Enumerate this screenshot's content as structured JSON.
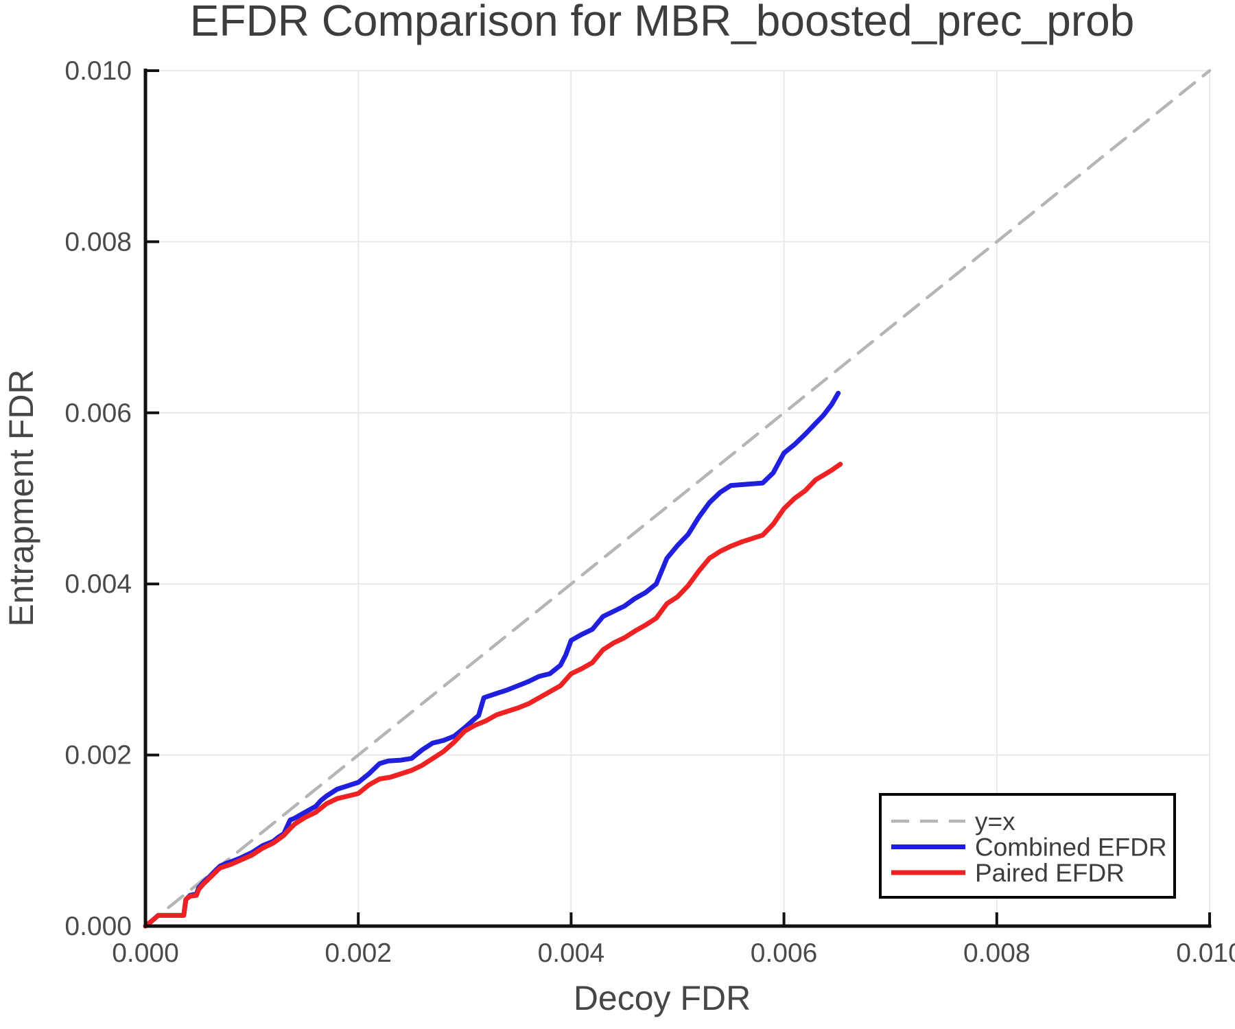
{
  "page": {
    "background": "#ffffff"
  },
  "chart_data": {
    "type": "line",
    "title": "EFDR Comparison for MBR_boosted_prec_prob",
    "xlabel": "Decoy FDR",
    "ylabel": "Entrapment FDR",
    "xlim": [
      0.0,
      0.01
    ],
    "ylim": [
      0.0,
      0.01
    ],
    "x_ticks": [
      0.0,
      0.002,
      0.004,
      0.006,
      0.008,
      0.01
    ],
    "y_ticks": [
      0.0,
      0.002,
      0.004,
      0.006,
      0.008,
      0.01
    ],
    "x_tick_labels": [
      "0.000",
      "0.002",
      "0.004",
      "0.006",
      "0.008",
      "0.010"
    ],
    "y_tick_labels": [
      "0.000",
      "0.002",
      "0.004",
      "0.006",
      "0.008",
      "0.010"
    ],
    "grid": true,
    "legend_position": "lower right",
    "colors": {
      "identity_line": "#b5b5b5",
      "combined": "#1f1fdd",
      "paired": "#ee2222",
      "gridline": "#e9e9e9",
      "spine": "#121212",
      "title_text": "#3d3d3d",
      "tick_text": "#4a4a4a",
      "label_text": "#464646",
      "legend_border": "#000000",
      "legend_fill": "#ffffff"
    },
    "series": [
      {
        "name": "y=x",
        "style": "dashed",
        "color": "#b5b5b5",
        "points": [
          [
            0.0,
            0.0
          ],
          [
            0.01,
            0.01
          ]
        ]
      },
      {
        "name": "Combined EFDR",
        "style": "solid",
        "color": "#1f1fdd",
        "points": [
          [
            0.0,
            0.0
          ],
          [
            6e-05,
            6e-05
          ],
          [
            0.00012,
            0.000125
          ],
          [
            0.00036,
            0.000125
          ],
          [
            0.00038,
            0.00031
          ],
          [
            0.00042,
            0.00036
          ],
          [
            0.00048,
            0.000375
          ],
          [
            0.0005,
            0.00045
          ],
          [
            0.00055,
            0.00052
          ],
          [
            0.0006,
            0.000575
          ],
          [
            0.00065,
            0.00064
          ],
          [
            0.0007,
            0.0007
          ],
          [
            0.00075,
            0.00073
          ],
          [
            0.0008,
            0.00075
          ],
          [
            0.0009,
            0.0008
          ],
          [
            0.001,
            0.00086
          ],
          [
            0.0011,
            0.00094
          ],
          [
            0.0012,
            0.00099
          ],
          [
            0.00125,
            0.00104
          ],
          [
            0.0013,
            0.00108
          ],
          [
            0.00136,
            0.00124
          ],
          [
            0.0014,
            0.00126
          ],
          [
            0.0015,
            0.00133
          ],
          [
            0.0016,
            0.0014
          ],
          [
            0.00165,
            0.00147
          ],
          [
            0.0017,
            0.00152
          ],
          [
            0.0018,
            0.0016
          ],
          [
            0.0019,
            0.00164
          ],
          [
            0.002,
            0.00168
          ],
          [
            0.0021,
            0.00178
          ],
          [
            0.0022,
            0.0019
          ],
          [
            0.00228,
            0.00193
          ],
          [
            0.0024,
            0.00194
          ],
          [
            0.0025,
            0.00196
          ],
          [
            0.0026,
            0.00206
          ],
          [
            0.0027,
            0.00214
          ],
          [
            0.0028,
            0.00217
          ],
          [
            0.0029,
            0.00222
          ],
          [
            0.003,
            0.00232
          ],
          [
            0.0031,
            0.00243
          ],
          [
            0.00313,
            0.00246
          ],
          [
            0.00318,
            0.00267
          ],
          [
            0.0033,
            0.00272
          ],
          [
            0.0034,
            0.00276
          ],
          [
            0.0035,
            0.00281
          ],
          [
            0.0036,
            0.00286
          ],
          [
            0.0037,
            0.00292
          ],
          [
            0.0038,
            0.00295
          ],
          [
            0.0039,
            0.00305
          ],
          [
            0.00395,
            0.00317
          ],
          [
            0.004,
            0.00334
          ],
          [
            0.0041,
            0.00341
          ],
          [
            0.0042,
            0.00347
          ],
          [
            0.0043,
            0.00362
          ],
          [
            0.0044,
            0.00368
          ],
          [
            0.0045,
            0.00374
          ],
          [
            0.0046,
            0.00383
          ],
          [
            0.0047,
            0.0039
          ],
          [
            0.0048,
            0.004
          ],
          [
            0.0049,
            0.0043
          ],
          [
            0.005,
            0.00445
          ],
          [
            0.0051,
            0.00458
          ],
          [
            0.0052,
            0.00478
          ],
          [
            0.0053,
            0.00495
          ],
          [
            0.0054,
            0.00507
          ],
          [
            0.0055,
            0.00515
          ],
          [
            0.0056,
            0.00516
          ],
          [
            0.0058,
            0.00518
          ],
          [
            0.0059,
            0.0053
          ],
          [
            0.006,
            0.00553
          ],
          [
            0.0061,
            0.00563
          ],
          [
            0.0062,
            0.00575
          ],
          [
            0.0063,
            0.00588
          ],
          [
            0.00637,
            0.00597
          ],
          [
            0.00645,
            0.0061
          ],
          [
            0.00651,
            0.00623
          ]
        ]
      },
      {
        "name": "Paired EFDR",
        "style": "solid",
        "color": "#ee2222",
        "points": [
          [
            0.0,
            0.0
          ],
          [
            6e-05,
            6e-05
          ],
          [
            0.00012,
            0.000125
          ],
          [
            0.00036,
            0.000125
          ],
          [
            0.00038,
            0.00031
          ],
          [
            0.00042,
            0.00035
          ],
          [
            0.00048,
            0.00036
          ],
          [
            0.0005,
            0.00043
          ],
          [
            0.00055,
            0.0005
          ],
          [
            0.0006,
            0.00056
          ],
          [
            0.00065,
            0.00062
          ],
          [
            0.0007,
            0.00068
          ],
          [
            0.00075,
            0.0007
          ],
          [
            0.0008,
            0.00072
          ],
          [
            0.0009,
            0.000775
          ],
          [
            0.001,
            0.00083
          ],
          [
            0.0011,
            0.00091
          ],
          [
            0.0012,
            0.00097
          ],
          [
            0.0013,
            0.00106
          ],
          [
            0.00136,
            0.00114
          ],
          [
            0.0014,
            0.00119
          ],
          [
            0.0015,
            0.00127
          ],
          [
            0.0016,
            0.00133
          ],
          [
            0.0017,
            0.00143
          ],
          [
            0.0018,
            0.00149
          ],
          [
            0.0019,
            0.00152
          ],
          [
            0.002,
            0.00155
          ],
          [
            0.0021,
            0.00165
          ],
          [
            0.0022,
            0.00172
          ],
          [
            0.0023,
            0.00174
          ],
          [
            0.0025,
            0.00182
          ],
          [
            0.0026,
            0.00188
          ],
          [
            0.0027,
            0.00196
          ],
          [
            0.0028,
            0.00204
          ],
          [
            0.0029,
            0.00215
          ],
          [
            0.003,
            0.00228
          ],
          [
            0.0031,
            0.00235
          ],
          [
            0.0032,
            0.0024
          ],
          [
            0.0033,
            0.00247
          ],
          [
            0.0034,
            0.00251
          ],
          [
            0.0035,
            0.00255
          ],
          [
            0.0036,
            0.0026
          ],
          [
            0.0037,
            0.00267
          ],
          [
            0.0038,
            0.00274
          ],
          [
            0.0039,
            0.00281
          ],
          [
            0.004,
            0.00295
          ],
          [
            0.0041,
            0.00301
          ],
          [
            0.0042,
            0.00308
          ],
          [
            0.0043,
            0.00323
          ],
          [
            0.0044,
            0.00331
          ],
          [
            0.0045,
            0.00337
          ],
          [
            0.0046,
            0.00345
          ],
          [
            0.0047,
            0.00352
          ],
          [
            0.0048,
            0.0036
          ],
          [
            0.0049,
            0.00377
          ],
          [
            0.005,
            0.00385
          ],
          [
            0.0051,
            0.00398
          ],
          [
            0.0052,
            0.00415
          ],
          [
            0.0053,
            0.0043
          ],
          [
            0.0054,
            0.00438
          ],
          [
            0.0055,
            0.00444
          ],
          [
            0.0056,
            0.00449
          ],
          [
            0.0057,
            0.00453
          ],
          [
            0.0058,
            0.00457
          ],
          [
            0.0059,
            0.0047
          ],
          [
            0.006,
            0.00488
          ],
          [
            0.0061,
            0.005
          ],
          [
            0.0062,
            0.00509
          ],
          [
            0.0063,
            0.00522
          ],
          [
            0.00637,
            0.00527
          ],
          [
            0.00645,
            0.00533
          ],
          [
            0.00653,
            0.0054
          ]
        ]
      }
    ]
  }
}
